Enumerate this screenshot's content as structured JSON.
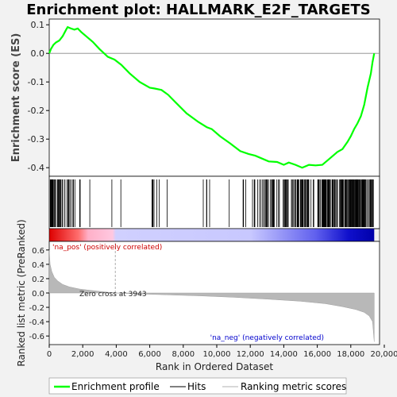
{
  "chart_data": {
    "type": "line",
    "title": "Enrichment plot: HALLMARK_E2F_TARGETS",
    "colors": {
      "es_line": "#00ff00",
      "hits": "#000000",
      "metric": "#b0b0b0",
      "bg": "#f2f2f2"
    },
    "es_panel": {
      "ylabel": "Enrichment score (ES)",
      "ylim": [
        -0.43,
        0.12
      ],
      "yticks": [
        0.1,
        0.0,
        -0.1,
        -0.2,
        -0.3,
        -0.4
      ],
      "ytick_labels": [
        "0.1",
        "0.0",
        "-0.1",
        "-0.2",
        "-0.3",
        "-0.4"
      ],
      "series": [
        {
          "name": "Enrichment profile",
          "x": [
            0,
            100,
            250,
            400,
            600,
            800,
            1000,
            1100,
            1300,
            1500,
            1700,
            1900,
            2200,
            2600,
            3000,
            3500,
            3900,
            4300,
            4800,
            5400,
            6000,
            6300,
            6700,
            7100,
            7600,
            8200,
            8900,
            9400,
            9700,
            10200,
            10800,
            11400,
            11900,
            12300,
            12700,
            13100,
            13600,
            14000,
            14300,
            14700,
            15100,
            15500,
            15900,
            16300,
            16600,
            16900,
            17200,
            17500,
            17800,
            18000,
            18200,
            18400,
            18600,
            18800,
            19000,
            19200,
            19300,
            19400
          ],
          "values": [
            0.0,
            0.015,
            0.03,
            0.038,
            0.045,
            0.06,
            0.082,
            0.092,
            0.087,
            0.083,
            0.087,
            0.075,
            0.06,
            0.04,
            0.015,
            -0.012,
            -0.022,
            -0.04,
            -0.07,
            -0.1,
            -0.12,
            -0.123,
            -0.128,
            -0.145,
            -0.175,
            -0.21,
            -0.24,
            -0.258,
            -0.265,
            -0.29,
            -0.315,
            -0.342,
            -0.352,
            -0.358,
            -0.368,
            -0.378,
            -0.38,
            -0.39,
            -0.382,
            -0.39,
            -0.4,
            -0.39,
            -0.392,
            -0.39,
            -0.375,
            -0.36,
            -0.345,
            -0.335,
            -0.31,
            -0.29,
            -0.265,
            -0.245,
            -0.22,
            -0.18,
            -0.12,
            -0.07,
            -0.03,
            0.0
          ]
        }
      ]
    },
    "hits_panel": {
      "legend_name": "Hits"
    },
    "rank_panel": {
      "xlabel": "Rank in Ordered Dataset",
      "ylabel": "Ranked list metric (PreRanked)",
      "legend_name": "Ranking metric scores",
      "ylim": [
        -0.72,
        0.72
      ],
      "yticks": [
        0.6,
        0.4,
        0.2,
        0.0,
        -0.2,
        -0.4,
        -0.6
      ],
      "ytick_labels": [
        "0.6",
        "0.4",
        "0.2",
        "0.0",
        "-0.2",
        "-0.4",
        "-0.6"
      ],
      "xlim": [
        0,
        20000
      ],
      "xticks": [
        0,
        2000,
        4000,
        6000,
        8000,
        10000,
        12000,
        14000,
        16000,
        18000,
        20000
      ],
      "xtick_labels": [
        "0",
        "2,000",
        "4,000",
        "6,000",
        "8,000",
        "10,000",
        "12,000",
        "14,000",
        "16,000",
        "18,000",
        "20,000"
      ],
      "metric_x": [
        0,
        50,
        150,
        300,
        500,
        800,
        1200,
        1800,
        2500,
        3200,
        3943,
        5000,
        7000,
        9000,
        11000,
        13000,
        15000,
        16500,
        17500,
        18300,
        18800,
        19100,
        19300,
        19400
      ],
      "metric_values": [
        0.6,
        0.4,
        0.3,
        0.22,
        0.17,
        0.12,
        0.085,
        0.055,
        0.035,
        0.018,
        0.0,
        -0.01,
        -0.025,
        -0.04,
        -0.06,
        -0.085,
        -0.115,
        -0.15,
        -0.19,
        -0.23,
        -0.27,
        -0.32,
        -0.4,
        -0.68
      ],
      "zero_cross_text": "Zero cross at 3943",
      "pos_text": "'na_pos' (positively correlated)",
      "neg_text": "'na_neg' (negatively correlated)"
    },
    "legend": {
      "items": [
        "Enrichment profile",
        "Hits",
        "Ranking metric scores"
      ],
      "placement": "bottom"
    }
  }
}
